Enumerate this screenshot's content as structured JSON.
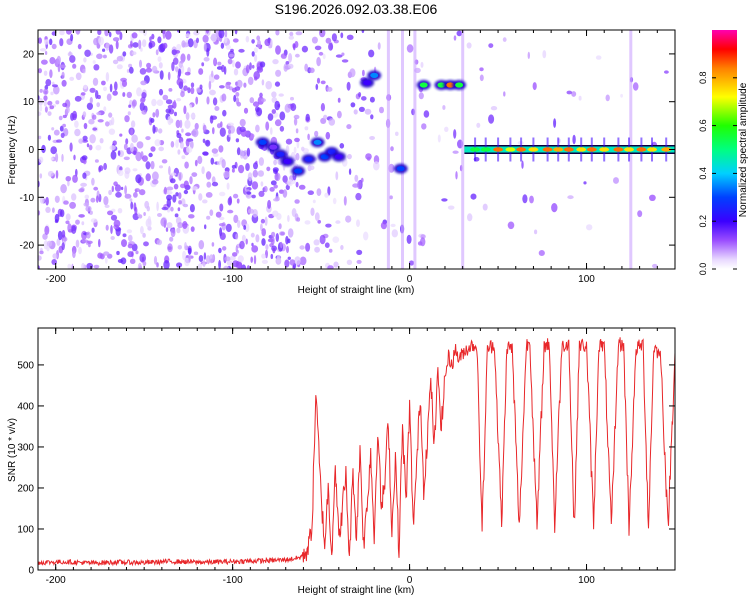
{
  "chart_data": [
    {
      "type": "heatmap",
      "title": "S196.2026.092.03.38.E06",
      "xlabel": "Height of straight line (km)",
      "ylabel": "Frequency (Hz)",
      "xlim": [
        -210,
        150
      ],
      "ylim": [
        -25,
        25
      ],
      "x_ticks": [
        -200,
        -100,
        0,
        100
      ],
      "y_ticks": [
        -20,
        -10,
        0,
        10,
        20
      ],
      "colorbar": {
        "label": "Normalized spectral amplitude",
        "range": [
          0,
          1
        ],
        "ticks": [
          0.0,
          0.2,
          0.4,
          0.6,
          0.8
        ]
      },
      "features": [
        {
          "x": -83,
          "y": 1.5,
          "amp": 0.3
        },
        {
          "x": -77,
          "y": 0.5,
          "amp": 0.15
        },
        {
          "x": -73,
          "y": -1.0,
          "amp": 0.25
        },
        {
          "x": -69,
          "y": -2.5,
          "amp": 0.2
        },
        {
          "x": -63,
          "y": -4.5,
          "amp": 0.3
        },
        {
          "x": -57,
          "y": -2.0,
          "amp": 0.25
        },
        {
          "x": -52,
          "y": 1.5,
          "amp": 0.35
        },
        {
          "x": -48,
          "y": -1.5,
          "amp": 0.3
        },
        {
          "x": -44,
          "y": -0.5,
          "amp": 0.25
        },
        {
          "x": -40,
          "y": -1.5,
          "amp": 0.2
        },
        {
          "x": -20,
          "y": 15.5,
          "amp": 0.35
        },
        {
          "x": -24,
          "y": 14.0,
          "amp": 0.2
        },
        {
          "x": -5,
          "y": -4.0,
          "amp": 0.3
        },
        {
          "x": 8,
          "y": 13.5,
          "amp": 0.55
        },
        {
          "x": 18,
          "y": 13.5,
          "amp": 0.55
        },
        {
          "x": 23,
          "y": 13.5,
          "amp": 0.85
        },
        {
          "x": 28,
          "y": 13.5,
          "amp": 0.55
        }
      ],
      "tone_line": {
        "y": 0,
        "x_start": 31,
        "x_end": 150,
        "peaks": [
          {
            "x": 37,
            "amp": 0.55
          },
          {
            "x": 43,
            "amp": 0.55
          },
          {
            "x": 50,
            "amp": 0.85
          },
          {
            "x": 57,
            "amp": 0.7
          },
          {
            "x": 63,
            "amp": 0.85
          },
          {
            "x": 70,
            "amp": 0.75
          },
          {
            "x": 78,
            "amp": 0.85
          },
          {
            "x": 84,
            "amp": 0.8
          },
          {
            "x": 90,
            "amp": 0.85
          },
          {
            "x": 97,
            "amp": 0.75
          },
          {
            "x": 103,
            "amp": 0.85
          },
          {
            "x": 110,
            "amp": 0.75
          },
          {
            "x": 118,
            "amp": 0.85
          },
          {
            "x": 124,
            "amp": 0.75
          },
          {
            "x": 131,
            "amp": 0.85
          },
          {
            "x": 137,
            "amp": 0.75
          },
          {
            "x": 145,
            "amp": 0.8
          }
        ]
      }
    },
    {
      "type": "line",
      "xlabel": "Height of straight line (km)",
      "ylabel": "SNR (10 * v/v)",
      "xlim": [
        -210,
        150
      ],
      "ylim": [
        0,
        590
      ],
      "x_ticks": [
        -200,
        -100,
        0,
        100
      ],
      "y_ticks": [
        0,
        100,
        200,
        300,
        400,
        500
      ],
      "line_color": "#e8272a",
      "series": [
        {
          "x": [
            -210,
            -195,
            -180,
            -165,
            -150,
            -135,
            -120,
            -105,
            -90,
            -80,
            -70,
            -62,
            -57,
            -55,
            -53,
            -50,
            -48,
            -46,
            -44,
            -42,
            -40,
            -38,
            -36,
            -34,
            -32,
            -30,
            -28,
            -26,
            -24,
            -22,
            -20,
            -18,
            -16,
            -14,
            -12,
            -10,
            -8,
            -6,
            -4,
            -2,
            0,
            2,
            4,
            6,
            8,
            10,
            12,
            14,
            16,
            18,
            20,
            22,
            24,
            26,
            28,
            30,
            34,
            38,
            41,
            44,
            48,
            52,
            55,
            58,
            62,
            66,
            68,
            72,
            76,
            79,
            82,
            86,
            90,
            93,
            96,
            100,
            104,
            107,
            110,
            114,
            118,
            121,
            124,
            128,
            132,
            135,
            138,
            142,
            146,
            150
          ],
          "y": [
            18,
            20,
            17,
            19,
            18,
            21,
            19,
            20,
            22,
            23,
            25,
            30,
            55,
            120,
            430,
            180,
            60,
            200,
            40,
            260,
            70,
            150,
            230,
            30,
            240,
            80,
            300,
            60,
            160,
            290,
            80,
            350,
            150,
            210,
            370,
            90,
            280,
            40,
            350,
            160,
            400,
            110,
            250,
            430,
            200,
            320,
            460,
            300,
            480,
            350,
            470,
            520,
            500,
            540,
            510,
            530,
            545,
            550,
            100,
            540,
            550,
            110,
            545,
            540,
            100,
            550,
            555,
            100,
            545,
            550,
            110,
            545,
            555,
            100,
            550,
            545,
            110,
            550,
            545,
            100,
            555,
            545,
            110,
            540,
            550,
            100,
            545,
            520,
            100,
            530
          ]
        }
      ]
    }
  ]
}
